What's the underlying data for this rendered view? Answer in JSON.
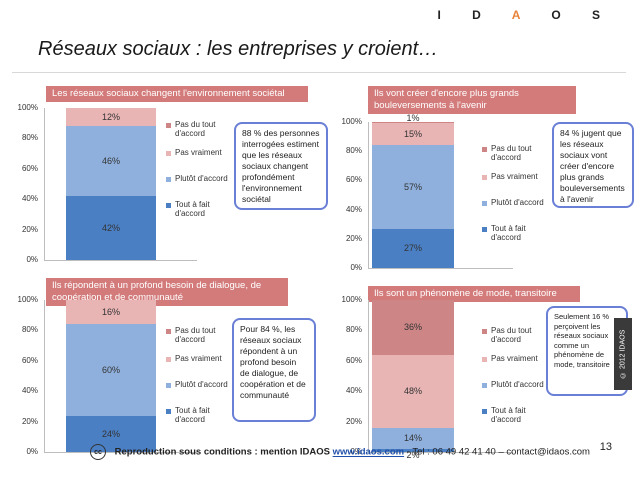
{
  "brand": "IDAOS",
  "title": "Réseaux sociaux : les entreprises y croient…",
  "footer": {
    "cc": "cc",
    "text_before": "Reproduction sous conditions : mention IDAOS",
    "link": "www.idaos.com",
    "text_after": "- Tel : 06 49 42 41 40 – contact@idaos.com"
  },
  "page_number": "13",
  "side_note": "© 2012 IDAOS",
  "colors": {
    "tout_a_fait": "#4a7fc4",
    "plutot": "#8fb0dd",
    "pas_vraiment": "#e8b4b4",
    "pas_du_tout": "#cd8585",
    "header_bg": "#d37b7b",
    "callout_border": "#6a7fd6"
  },
  "legend": [
    "Pas du tout d'accord",
    "Pas vraiment",
    "Plutôt d'accord",
    "Tout à fait d'accord"
  ],
  "chart_data": [
    {
      "type": "bar",
      "title": "Les réseaux sociaux changent l'environnement sociétal",
      "ylim": [
        0,
        100
      ],
      "yticks": [
        "0%",
        "20%",
        "40%",
        "60%",
        "80%",
        "100%"
      ],
      "series": [
        {
          "name": "Tout à fait d'accord",
          "values": [
            42
          ],
          "label": "42%"
        },
        {
          "name": "Plutôt d'accord",
          "values": [
            46
          ],
          "label": "46%"
        },
        {
          "name": "Pas vraiment",
          "values": [
            12
          ],
          "label": "12%"
        },
        {
          "name": "Pas du tout d'accord",
          "values": [
            0
          ],
          "label": ""
        }
      ],
      "callout": "88 % des personnes interrogées estiment que les réseaux sociaux changent profondément l'environnement sociétal"
    },
    {
      "type": "bar",
      "title": "Ils vont créer d'encore plus grands bouleversements à l'avenir",
      "ylim": [
        0,
        100
      ],
      "yticks": [
        "0%",
        "20%",
        "40%",
        "60%",
        "80%",
        "100%"
      ],
      "series": [
        {
          "name": "Tout à fait d'accord",
          "values": [
            27
          ],
          "label": "27%"
        },
        {
          "name": "Plutôt d'accord",
          "values": [
            57
          ],
          "label": "57%"
        },
        {
          "name": "Pas vraiment",
          "values": [
            15
          ],
          "label": "15%"
        },
        {
          "name": "Pas du tout d'accord",
          "values": [
            1
          ],
          "label": "1%"
        }
      ],
      "callout": "84 % jugent que les réseaux sociaux vont créer d'encore plus grands bouleversements à l'avenir"
    },
    {
      "type": "bar",
      "title": "Ils répondent à un profond besoin de dialogue, de coopération et de communauté",
      "ylim": [
        0,
        100
      ],
      "yticks": [
        "0%",
        "20%",
        "40%",
        "60%",
        "80%",
        "100%"
      ],
      "series": [
        {
          "name": "Tout à fait d'accord",
          "values": [
            24
          ],
          "label": "24%"
        },
        {
          "name": "Plutôt d'accord",
          "values": [
            60
          ],
          "label": "60%"
        },
        {
          "name": "Pas vraiment",
          "values": [
            16
          ],
          "label": "16%"
        },
        {
          "name": "Pas du tout d'accord",
          "values": [
            0
          ],
          "label": ""
        }
      ],
      "callout": "Pour 84 %, les réseaux sociaux répondent à un profond besoin de dialogue, de coopération et de communauté"
    },
    {
      "type": "bar",
      "title": "Ils sont un phénomène de mode, transitoire",
      "ylim": [
        0,
        100
      ],
      "yticks": [
        "0%",
        "20%",
        "40%",
        "60%",
        "80%",
        "100%"
      ],
      "series": [
        {
          "name": "Tout à fait d'accord",
          "values": [
            2
          ],
          "label": "2%"
        },
        {
          "name": "Plutôt d'accord",
          "values": [
            14
          ],
          "label": "14%"
        },
        {
          "name": "Pas vraiment",
          "values": [
            48
          ],
          "label": "48%"
        },
        {
          "name": "Pas du tout d'accord",
          "values": [
            36
          ],
          "label": "36%"
        }
      ],
      "callout": "Seulement 16 % perçoivent les réseaux sociaux comme un phénomène de mode, transitoire"
    }
  ]
}
